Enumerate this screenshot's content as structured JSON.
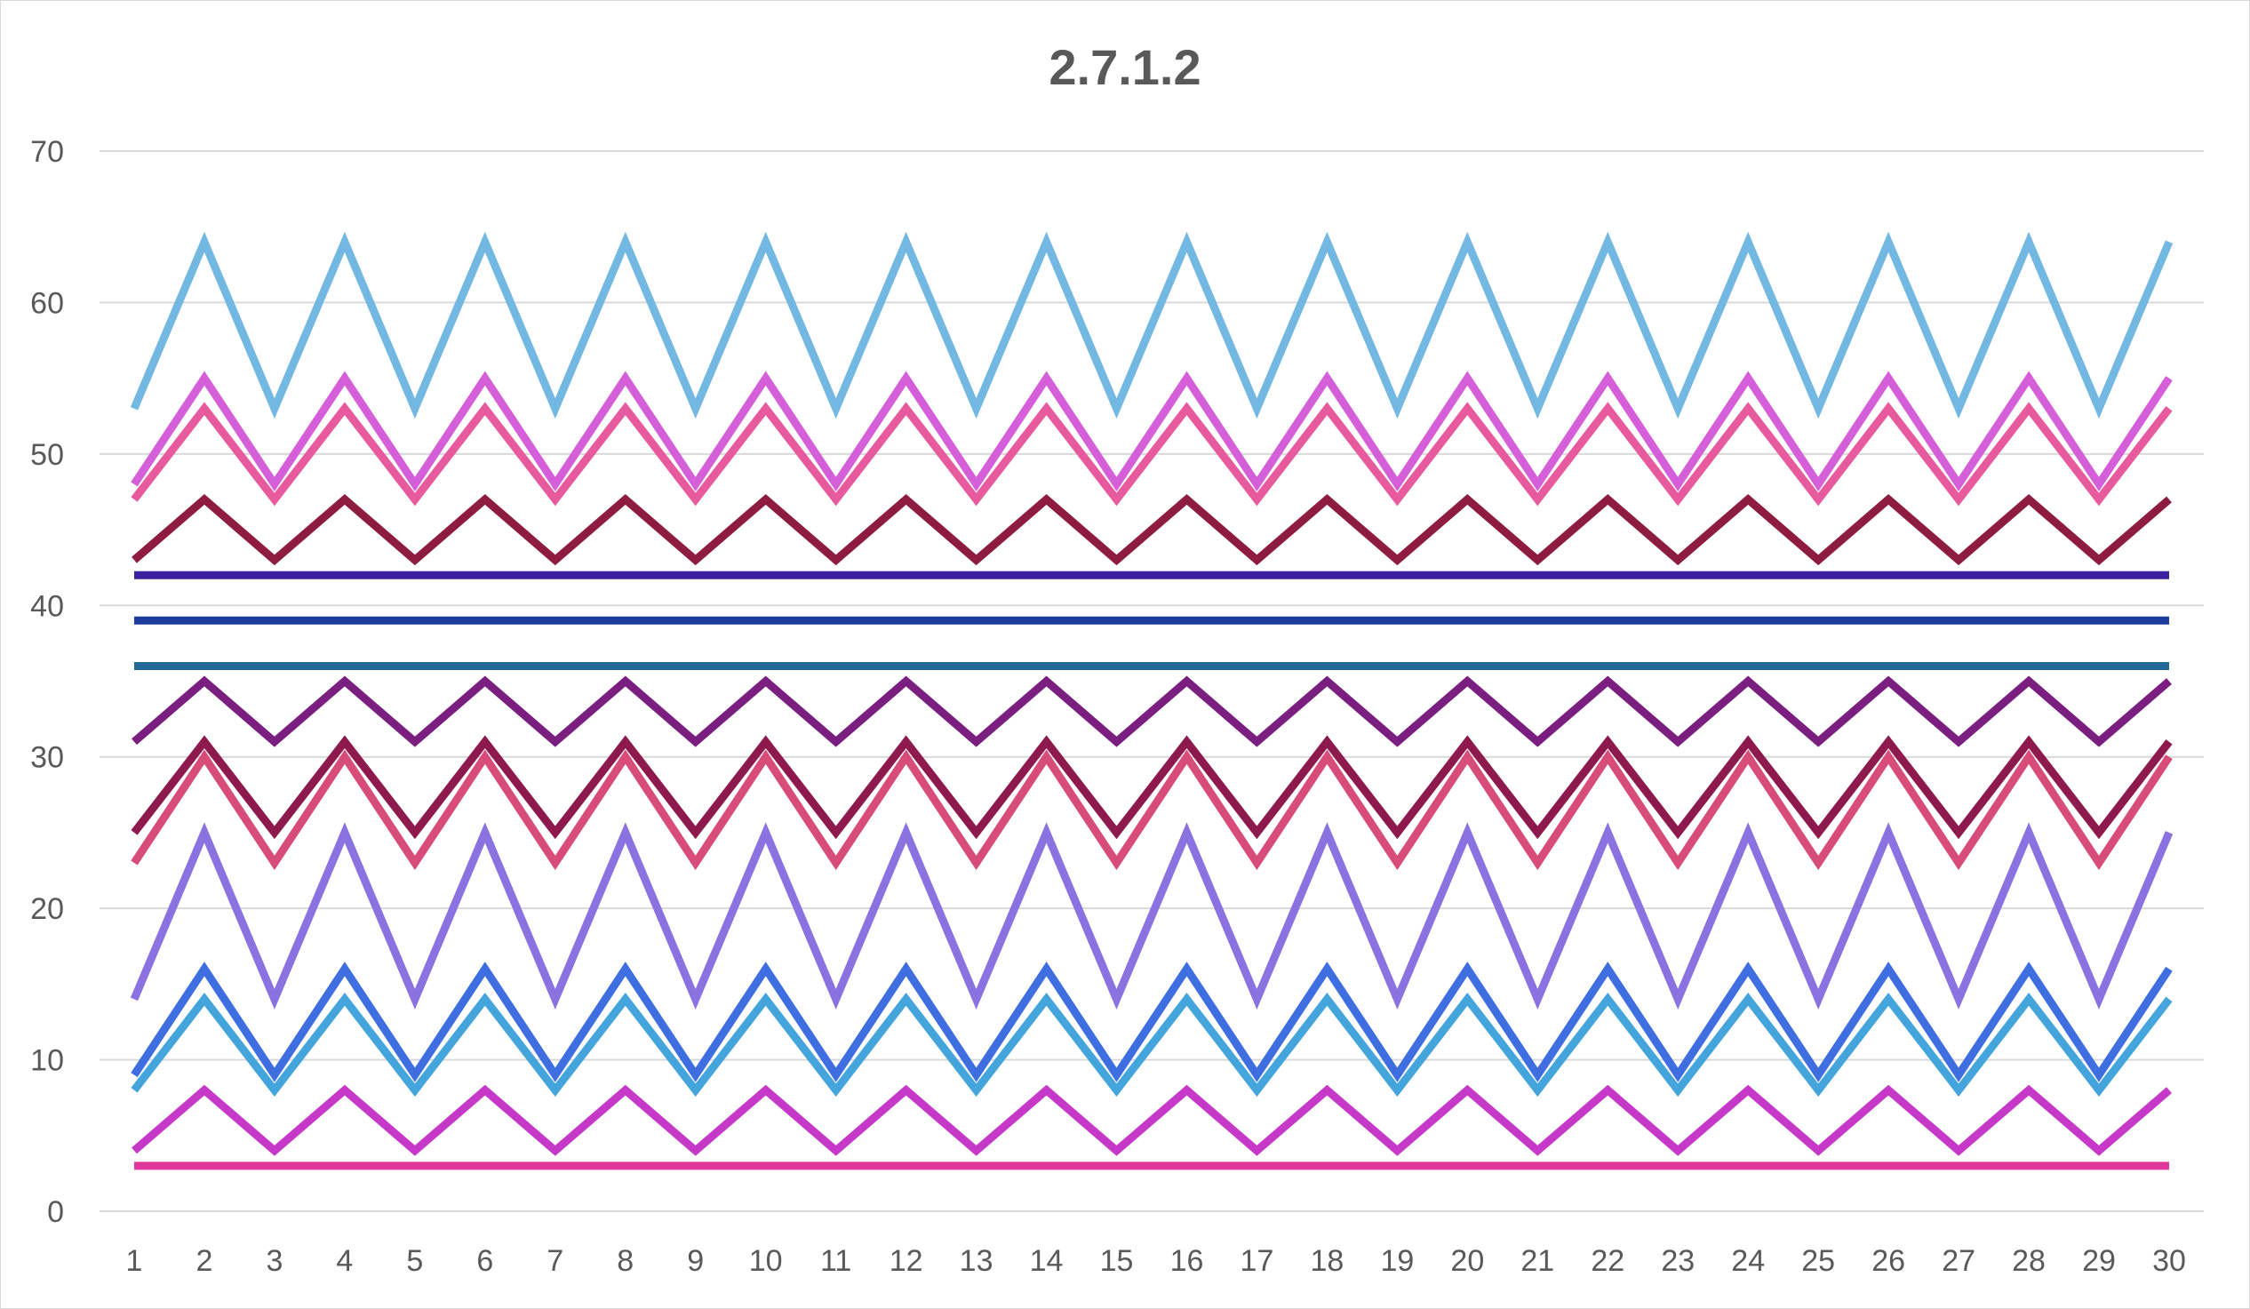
{
  "chart_data": {
    "type": "line",
    "title": "2.7.1.2",
    "xlabel": "",
    "ylabel": "",
    "x": [
      1,
      2,
      3,
      4,
      5,
      6,
      7,
      8,
      9,
      10,
      11,
      12,
      13,
      14,
      15,
      16,
      17,
      18,
      19,
      20,
      21,
      22,
      23,
      24,
      25,
      26,
      27,
      28,
      29,
      30
    ],
    "ylim": [
      0,
      70
    ],
    "yticks": [
      0,
      10,
      20,
      30,
      40,
      50,
      60,
      70
    ],
    "grid": true,
    "legend": "none",
    "series": [
      {
        "color": "#72B8E2",
        "odd": 53,
        "even": 64
      },
      {
        "color": "#D45FD8",
        "odd": 48,
        "even": 55
      },
      {
        "color": "#E75A9D",
        "odd": 47,
        "even": 53
      },
      {
        "color": "#8E1C3F",
        "odd": 43,
        "even": 47
      },
      {
        "color": "#3B22A0",
        "odd": 42,
        "even": 42
      },
      {
        "color": "#1B3C9A",
        "odd": 39,
        "even": 39
      },
      {
        "color": "#216A96",
        "odd": 36,
        "even": 36
      },
      {
        "color": "#7A1E80",
        "odd": 31,
        "even": 35
      },
      {
        "color": "#8E1A4D",
        "odd": 25,
        "even": 31
      },
      {
        "color": "#D84C7A",
        "odd": 23,
        "even": 30
      },
      {
        "color": "#8A72E0",
        "odd": 14,
        "even": 25
      },
      {
        "color": "#3F6EE0",
        "odd": 9,
        "even": 16
      },
      {
        "color": "#44A4DC",
        "odd": 8,
        "even": 14
      },
      {
        "color": "#C638C8",
        "odd": 4,
        "even": 8
      },
      {
        "color": "#E0389A",
        "odd": 3,
        "even": 3
      }
    ]
  }
}
